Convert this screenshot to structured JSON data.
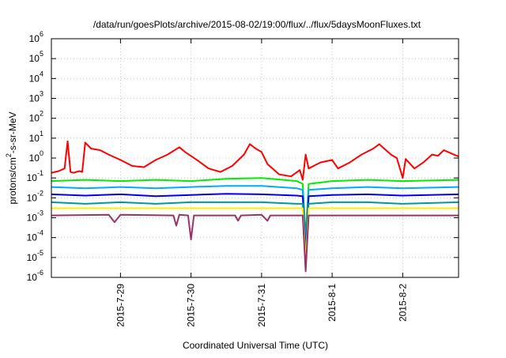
{
  "chart_data": {
    "type": "line",
    "title": "/data/run/goesPlots/archive/2015-08-02/19:00/flux/../flux/5daysMoonFluxes.txt",
    "xlabel": "Coordinated Universal Time (UTC)",
    "ylabel": "protons/cm2-s-sr-MeV",
    "ylabel_parts": [
      "protons/cm",
      "2",
      "-s-sr-MeV"
    ],
    "y_scale": "log",
    "ylim": [
      1e-06,
      1000000.0
    ],
    "y_ticks": [
      {
        "base": "10",
        "exp": "-6"
      },
      {
        "base": "10",
        "exp": "-5"
      },
      {
        "base": "10",
        "exp": "-4"
      },
      {
        "base": "10",
        "exp": "-3"
      },
      {
        "base": "10",
        "exp": "-2"
      },
      {
        "base": "10",
        "exp": "-1"
      },
      {
        "base": "10",
        "exp": "0"
      },
      {
        "base": "10",
        "exp": "1"
      },
      {
        "base": "10",
        "exp": "2"
      },
      {
        "base": "10",
        "exp": "3"
      },
      {
        "base": "10",
        "exp": "4"
      },
      {
        "base": "10",
        "exp": "5"
      },
      {
        "base": "10",
        "exp": "6"
      }
    ],
    "xlim": [
      "2015-07-28 00:30",
      "2015-08-02 19:00"
    ],
    "x_ticks": [
      "2015-7-29",
      "2015-7-30",
      "2015-7-31",
      "2015-8-1",
      "2015-8-2"
    ],
    "grid": true,
    "legend": "none",
    "series": [
      {
        "color": "#ff0000",
        "points": [
          [
            "2015-07-28 00:30",
            0.18
          ],
          [
            "2015-07-28 03:00",
            0.22
          ],
          [
            "2015-07-28 05:00",
            0.3
          ],
          [
            "2015-07-28 06:00",
            7.0
          ],
          [
            "2015-07-28 07:00",
            0.2
          ],
          [
            "2015-07-28 08:00",
            0.18
          ],
          [
            "2015-07-28 10:00",
            0.22
          ],
          [
            "2015-07-28 11:00",
            0.2
          ],
          [
            "2015-07-28 12:00",
            6.0
          ],
          [
            "2015-07-28 14:00",
            3.0
          ],
          [
            "2015-07-28 17:00",
            2.5
          ],
          [
            "2015-07-28 20:00",
            1.5
          ],
          [
            "2015-07-29 00:00",
            0.8
          ],
          [
            "2015-07-29 04:00",
            0.4
          ],
          [
            "2015-07-29 08:00",
            0.35
          ],
          [
            "2015-07-29 12:00",
            0.8
          ],
          [
            "2015-07-29 16:00",
            1.5
          ],
          [
            "2015-07-29 20:00",
            3.5
          ],
          [
            "2015-07-29 22:00",
            2.0
          ],
          [
            "2015-07-30 02:00",
            0.8
          ],
          [
            "2015-07-30 06:00",
            0.3
          ],
          [
            "2015-07-30 10:00",
            0.2
          ],
          [
            "2015-07-30 14:00",
            0.4
          ],
          [
            "2015-07-30 18:00",
            1.5
          ],
          [
            "2015-07-30 20:00",
            5.0
          ],
          [
            "2015-07-30 22:00",
            3.0
          ],
          [
            "2015-07-31 00:00",
            2.0
          ],
          [
            "2015-07-31 02:00",
            0.5
          ],
          [
            "2015-07-31 06:00",
            0.15
          ],
          [
            "2015-07-31 10:00",
            0.12
          ],
          [
            "2015-07-31 13:00",
            0.25
          ],
          [
            "2015-07-31 14:00",
            0.08
          ],
          [
            "2015-07-31 15:00",
            1.5
          ],
          [
            "2015-07-31 16:00",
            0.3
          ],
          [
            "2015-07-31 20:00",
            0.6
          ],
          [
            "2015-08-01 00:00",
            0.8
          ],
          [
            "2015-08-01 02:00",
            0.3
          ],
          [
            "2015-08-01 06:00",
            0.6
          ],
          [
            "2015-08-01 10:00",
            1.5
          ],
          [
            "2015-08-01 14:00",
            3.0
          ],
          [
            "2015-08-01 16:00",
            5.0
          ],
          [
            "2015-08-01 20:00",
            1.5
          ],
          [
            "2015-08-01 22:00",
            1.0
          ],
          [
            "2015-08-02 00:00",
            0.1
          ],
          [
            "2015-08-02 01:00",
            0.9
          ],
          [
            "2015-08-02 04:00",
            0.3
          ],
          [
            "2015-08-02 07:00",
            0.6
          ],
          [
            "2015-08-02 10:00",
            1.5
          ],
          [
            "2015-08-02 12:00",
            1.3
          ],
          [
            "2015-08-02 14:00",
            2.5
          ],
          [
            "2015-08-02 17:00",
            1.6
          ],
          [
            "2015-08-02 19:00",
            1.2
          ]
        ]
      },
      {
        "color": "#00ee00",
        "points": [
          [
            "2015-07-28 00:30",
            0.07
          ],
          [
            "2015-07-28 12:00",
            0.08
          ],
          [
            "2015-07-29 00:00",
            0.07
          ],
          [
            "2015-07-29 12:00",
            0.08
          ],
          [
            "2015-07-30 00:00",
            0.07
          ],
          [
            "2015-07-30 12:00",
            0.09
          ],
          [
            "2015-07-31 00:00",
            0.1
          ],
          [
            "2015-07-31 12:00",
            0.07
          ],
          [
            "2015-07-31 14:00",
            0.05
          ],
          [
            "2015-07-31 15:00",
            0.0001
          ],
          [
            "2015-07-31 16:00",
            0.05
          ],
          [
            "2015-08-01 00:00",
            0.07
          ],
          [
            "2015-08-01 12:00",
            0.08
          ],
          [
            "2015-08-02 00:00",
            0.07
          ],
          [
            "2015-08-02 19:00",
            0.08
          ]
        ]
      },
      {
        "color": "#00aaff",
        "points": [
          [
            "2015-07-28 00:30",
            0.035
          ],
          [
            "2015-07-28 12:00",
            0.03
          ],
          [
            "2015-07-29 00:00",
            0.035
          ],
          [
            "2015-07-29 12:00",
            0.03
          ],
          [
            "2015-07-30 00:00",
            0.035
          ],
          [
            "2015-07-30 12:00",
            0.04
          ],
          [
            "2015-07-31 00:00",
            0.04
          ],
          [
            "2015-07-31 12:00",
            0.03
          ],
          [
            "2015-07-31 14:00",
            0.025
          ],
          [
            "2015-07-31 15:00",
            4e-05
          ],
          [
            "2015-07-31 16:00",
            0.025
          ],
          [
            "2015-08-01 00:00",
            0.03
          ],
          [
            "2015-08-01 12:00",
            0.035
          ],
          [
            "2015-08-02 00:00",
            0.03
          ],
          [
            "2015-08-02 19:00",
            0.035
          ]
        ]
      },
      {
        "color": "#0000ee",
        "points": [
          [
            "2015-07-28 00:30",
            0.015
          ],
          [
            "2015-07-28 12:00",
            0.013
          ],
          [
            "2015-07-29 00:00",
            0.015
          ],
          [
            "2015-07-29 12:00",
            0.012
          ],
          [
            "2015-07-30 00:00",
            0.014
          ],
          [
            "2015-07-30 12:00",
            0.016
          ],
          [
            "2015-07-31 00:00",
            0.015
          ],
          [
            "2015-07-31 12:00",
            0.013
          ],
          [
            "2015-07-31 14:00",
            0.012
          ],
          [
            "2015-07-31 15:00",
            2e-05
          ],
          [
            "2015-07-31 16:00",
            0.012
          ],
          [
            "2015-08-01 00:00",
            0.014
          ],
          [
            "2015-08-01 12:00",
            0.015
          ],
          [
            "2015-08-02 00:00",
            0.013
          ],
          [
            "2015-08-02 19:00",
            0.015
          ]
        ]
      },
      {
        "color": "#009999",
        "points": [
          [
            "2015-07-28 00:30",
            0.006
          ],
          [
            "2015-07-28 12:00",
            0.005
          ],
          [
            "2015-07-29 00:00",
            0.006
          ],
          [
            "2015-07-29 12:00",
            0.005
          ],
          [
            "2015-07-30 00:00",
            0.006
          ],
          [
            "2015-07-30 12:00",
            0.006
          ],
          [
            "2015-07-31 00:00",
            0.006
          ],
          [
            "2015-07-31 12:00",
            0.005
          ],
          [
            "2015-07-31 14:00",
            0.005
          ],
          [
            "2015-07-31 15:00",
            1e-05
          ],
          [
            "2015-07-31 16:00",
            0.005
          ],
          [
            "2015-08-01 00:00",
            0.006
          ],
          [
            "2015-08-01 12:00",
            0.006
          ],
          [
            "2015-08-02 00:00",
            0.005
          ],
          [
            "2015-08-02 19:00",
            0.006
          ]
        ]
      },
      {
        "color": "#ffee00",
        "points": [
          [
            "2015-07-28 00:30",
            0.003
          ],
          [
            "2015-07-29 00:00",
            0.003
          ],
          [
            "2015-07-30 00:00",
            0.003
          ],
          [
            "2015-07-31 00:00",
            0.003
          ],
          [
            "2015-07-31 14:00",
            0.003
          ],
          [
            "2015-07-31 15:00",
            5e-06
          ],
          [
            "2015-07-31 16:00",
            0.003
          ],
          [
            "2015-08-01 00:00",
            0.003
          ],
          [
            "2015-08-02 00:00",
            0.003
          ],
          [
            "2015-08-02 19:00",
            0.003
          ]
        ]
      },
      {
        "color": "#993366",
        "points": [
          [
            "2015-07-28 00:30",
            0.0013
          ],
          [
            "2015-07-28 20:00",
            0.0014
          ],
          [
            "2015-07-28 22:00",
            0.0006
          ],
          [
            "2015-07-29 00:00",
            0.0014
          ],
          [
            "2015-07-29 18:00",
            0.0013
          ],
          [
            "2015-07-29 19:00",
            0.0004
          ],
          [
            "2015-07-29 20:00",
            0.0014
          ],
          [
            "2015-07-29 23:00",
            0.0013
          ],
          [
            "2015-07-30 00:00",
            8e-05
          ],
          [
            "2015-07-30 01:00",
            0.0013
          ],
          [
            "2015-07-30 15:00",
            0.0013
          ],
          [
            "2015-07-30 16:00",
            0.0007
          ],
          [
            "2015-07-30 17:00",
            0.0013
          ],
          [
            "2015-07-31 00:00",
            0.0014
          ],
          [
            "2015-07-31 02:00",
            0.0007
          ],
          [
            "2015-07-31 03:00",
            0.0013
          ],
          [
            "2015-07-31 14:00",
            0.0013
          ],
          [
            "2015-07-31 15:00",
            2e-06
          ],
          [
            "2015-07-31 16:00",
            0.0013
          ],
          [
            "2015-08-01 00:00",
            0.0013
          ],
          [
            "2015-08-02 00:00",
            0.0013
          ],
          [
            "2015-08-02 19:00",
            0.0013
          ]
        ]
      }
    ]
  }
}
